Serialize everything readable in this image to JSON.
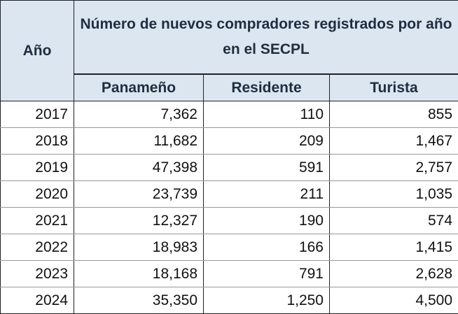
{
  "table": {
    "header": {
      "year": "Año",
      "title": "Número de nuevos compradores registrados por año en el SECPL",
      "columns": [
        "Panameño",
        "Residente",
        "Turista"
      ]
    },
    "rows": [
      [
        "2017",
        "7,362",
        "110",
        "855"
      ],
      [
        "2018",
        "11,682",
        "209",
        "1,467"
      ],
      [
        "2019",
        "47,398",
        "591",
        "2,757"
      ],
      [
        "2020",
        "23,739",
        "211",
        "1,035"
      ],
      [
        "2021",
        "12,327",
        "190",
        "574"
      ],
      [
        "2022",
        "18,983",
        "166",
        "1,415"
      ],
      [
        "2023",
        "18,168",
        "791",
        "2,628"
      ],
      [
        "2024",
        "35,350",
        "1,250",
        "4,500"
      ]
    ]
  }
}
